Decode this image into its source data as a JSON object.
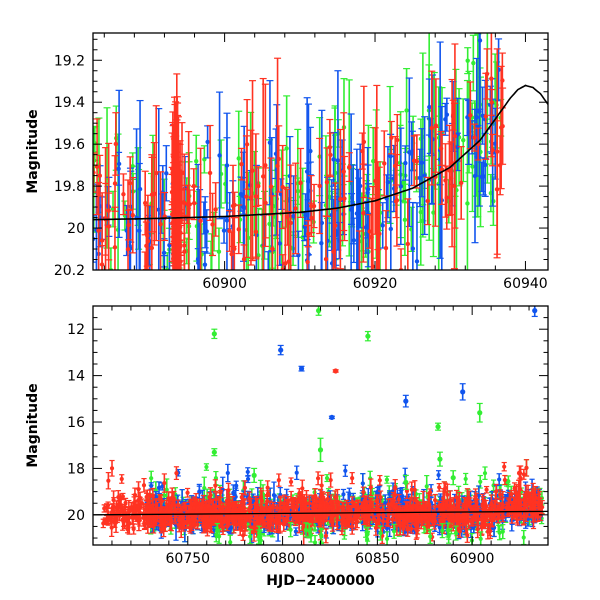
{
  "chart_data": [
    {
      "type": "scatter",
      "panel": "top",
      "xlabel": "",
      "ylabel": "Magnitude",
      "xlim": [
        60882.5,
        60943
      ],
      "ylim": [
        20.2,
        19.07
      ],
      "y_inverted": true,
      "x_ticks": [
        60900,
        60920,
        60940
      ],
      "y_ticks": [
        19.2,
        19.4,
        19.6,
        19.8,
        20,
        20.2
      ],
      "grid": false,
      "series_colors": {
        "green": "#33ee33",
        "blue": "#1155ee",
        "red": "#ff3322"
      },
      "model_curve": {
        "color": "#000000",
        "x": [
          60882.5,
          60890,
          60900,
          60910,
          60915,
          60920,
          60925,
          60930,
          60934,
          60936,
          60938,
          60939,
          60940,
          60941,
          60942,
          60943
        ],
        "y": [
          19.96,
          19.955,
          19.945,
          19.925,
          19.905,
          19.87,
          19.81,
          19.71,
          19.58,
          19.48,
          19.38,
          19.34,
          19.32,
          19.33,
          19.36,
          19.41
        ]
      }
    },
    {
      "type": "scatter",
      "panel": "bottom",
      "xlabel": "HJD−2400000",
      "ylabel": "Magnitude",
      "xlim": [
        60700,
        60940
      ],
      "ylim": [
        21.3,
        11
      ],
      "y_inverted": true,
      "x_ticks": [
        60750,
        60800,
        60850,
        60900
      ],
      "y_ticks": [
        12,
        14,
        16,
        18,
        20
      ],
      "grid": false,
      "series_colors": {
        "green": "#33ee33",
        "blue": "#1155ee",
        "red": "#ff3322"
      },
      "outliers": [
        {
          "color": "green",
          "x": 60764,
          "y": 12.2,
          "err": 0.2
        },
        {
          "color": "green",
          "x": 60764,
          "y": 17.3,
          "err": 0.15
        },
        {
          "color": "green",
          "x": 60819,
          "y": 11.2,
          "err": 0.2
        },
        {
          "color": "green",
          "x": 60845,
          "y": 12.3,
          "err": 0.2
        },
        {
          "color": "blue",
          "x": 60799,
          "y": 12.9,
          "err": 0.2
        },
        {
          "color": "blue",
          "x": 60810,
          "y": 13.7,
          "err": 0.1
        },
        {
          "color": "red",
          "x": 60828,
          "y": 13.8,
          "err": 0.05
        },
        {
          "color": "blue",
          "x": 60826,
          "y": 15.8,
          "err": 0.05
        },
        {
          "color": "blue",
          "x": 60865,
          "y": 15.1,
          "err": 0.25
        },
        {
          "color": "blue",
          "x": 60895,
          "y": 14.7,
          "err": 0.35
        },
        {
          "color": "green",
          "x": 60904,
          "y": 15.6,
          "err": 0.4
        },
        {
          "color": "green",
          "x": 60882,
          "y": 16.2,
          "err": 0.15
        },
        {
          "color": "green",
          "x": 60820,
          "y": 17.2,
          "err": 0.5
        },
        {
          "color": "green",
          "x": 60785,
          "y": 18.3,
          "err": 0.3
        },
        {
          "color": "green",
          "x": 60865,
          "y": 18.6,
          "err": 0.3
        },
        {
          "color": "green",
          "x": 60883,
          "y": 17.6,
          "err": 0.3
        },
        {
          "color": "green",
          "x": 60890,
          "y": 18.4,
          "err": 0.3
        },
        {
          "color": "blue",
          "x": 60933,
          "y": 11.2,
          "err": 0.25
        },
        {
          "color": "red",
          "x": 60925,
          "y": 18.2,
          "err": 0.3
        }
      ],
      "bulk": {
        "x_start": 60705,
        "x_end": 60937,
        "mean_mag": 19.95,
        "scatter": 0.35
      }
    }
  ]
}
